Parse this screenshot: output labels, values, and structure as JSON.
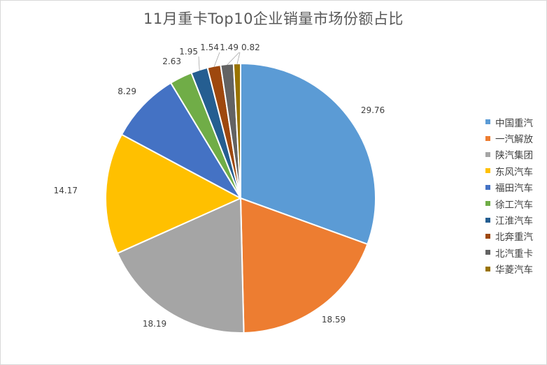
{
  "chart_data": {
    "type": "pie",
    "title": "11月重卡Top10企业销量市场份额占比",
    "categories": [
      "中国重汽",
      "一汽解放",
      "陕汽集团",
      "东风汽车",
      "福田汽车",
      "徐工汽车",
      "江淮汽车",
      "北奔重汽",
      "北汽重卡",
      "华菱汽车"
    ],
    "values": [
      29.76,
      18.59,
      18.19,
      14.17,
      8.29,
      2.63,
      1.95,
      1.54,
      1.49,
      0.82
    ],
    "value_labels": [
      "29.76",
      "18.59",
      "18.19",
      "14.17",
      "8.29",
      "2.63",
      "1.95",
      "1.54",
      "1.49",
      "0.82"
    ],
    "colors": [
      "#5b9bd5",
      "#ed7d31",
      "#a5a5a5",
      "#ffc000",
      "#4472c4",
      "#70ad47",
      "#255e91",
      "#9e480e",
      "#636363",
      "#997300"
    ],
    "legend_position": "right"
  }
}
